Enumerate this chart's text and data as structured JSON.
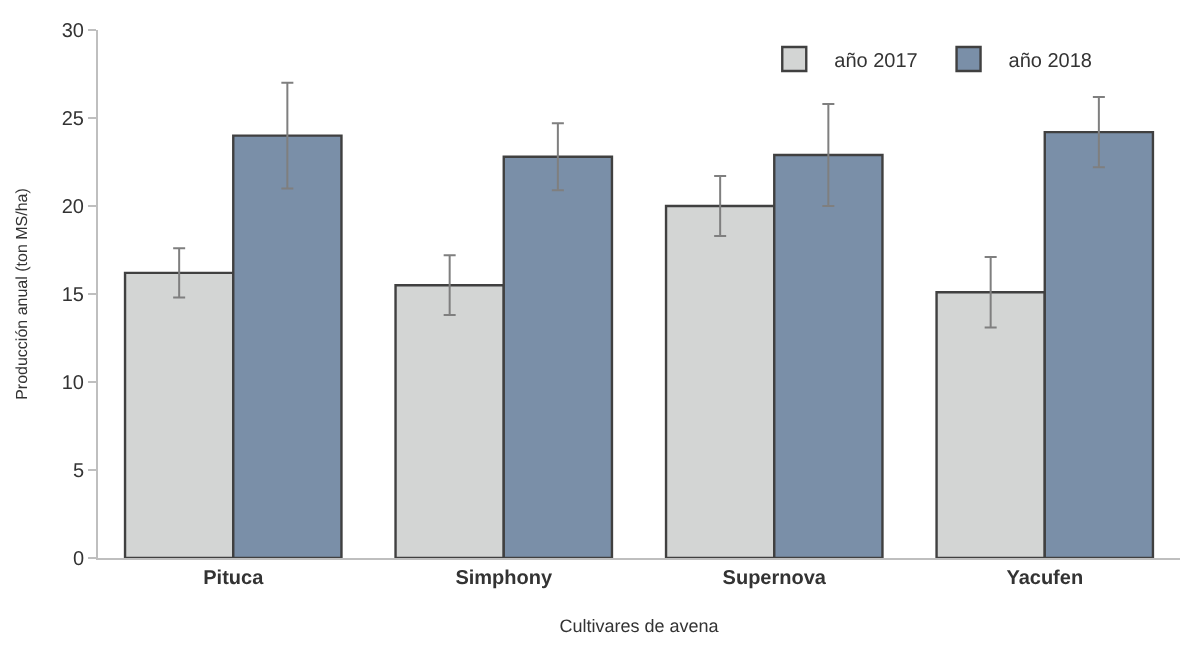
{
  "chart_data": {
    "type": "bar",
    "xlabel": "Cultivares de avena",
    "ylabel": "Producción anual (ton MS/ha)",
    "categories": [
      "Pituca",
      "Simphony",
      "Supernova",
      "Yacufen"
    ],
    "series": [
      {
        "name": "año 2017",
        "color": "#d3d5d4",
        "values": [
          16.2,
          15.5,
          20.0,
          15.1
        ],
        "errors": [
          1.4,
          1.7,
          1.7,
          2.0
        ]
      },
      {
        "name": "año 2018",
        "color": "#7a8fa8",
        "values": [
          24.0,
          22.8,
          22.9,
          24.2
        ],
        "errors": [
          3.0,
          1.9,
          2.9,
          2.0
        ]
      }
    ],
    "ylim": [
      0,
      30
    ],
    "yticks": [
      0,
      5,
      10,
      15,
      20,
      25,
      30
    ],
    "legend": "top right"
  }
}
